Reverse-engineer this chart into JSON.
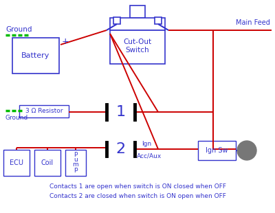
{
  "bg_color": "#ffffff",
  "blue": "#3333cc",
  "red": "#cc0000",
  "green": "#00bb00",
  "black": "#000000",
  "gray": "#777777",
  "note_line1": "Contacts 1 are open when switch is ON closed when OFF",
  "note_line2": "Contacts 2 are closed when switch is ON open when OFF",
  "switch_label1": "Cut-Out",
  "switch_label2": "Switch",
  "battery_label": "Battery",
  "resistor_label": "3 Ω Resistor",
  "ground_label": "Ground",
  "plus_label": "+",
  "main_feed_label": "Main Feed",
  "ecu_label": "ECU",
  "coil_label": "Coil",
  "pump_label": "P\nu\nm\np",
  "ign_label": "Ign",
  "acc_label": "Acc/Aux",
  "ignsw_label": "Ign Sw",
  "contact1_label": "1",
  "contact2_label": "2"
}
